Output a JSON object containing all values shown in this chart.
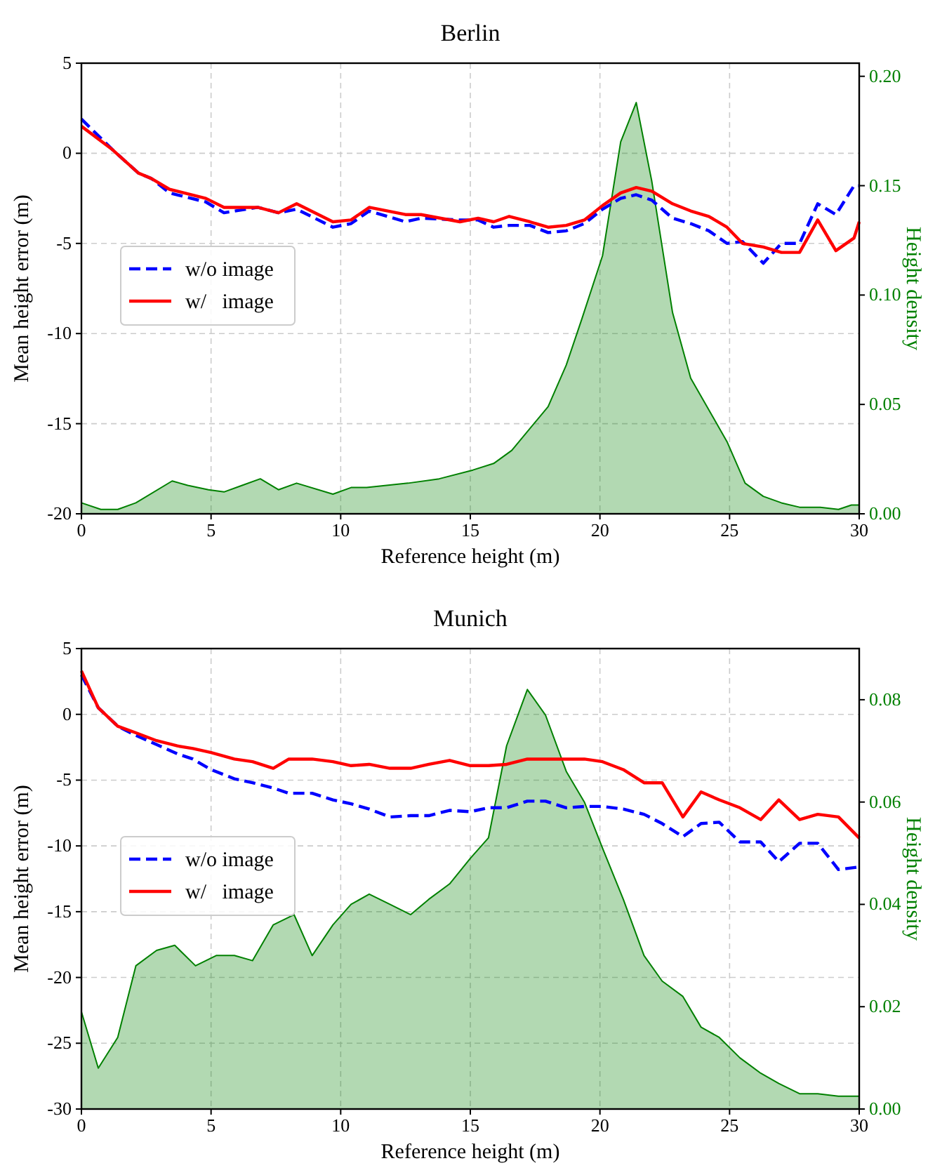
{
  "chart_data": [
    {
      "type": "line",
      "title": "Berlin",
      "xlabel": "Reference height (m)",
      "ylabel": "Mean height error (m)",
      "y2label": "Height density",
      "xlim": [
        0,
        30
      ],
      "xticks": [
        0,
        5,
        10,
        15,
        20,
        25,
        30
      ],
      "ylim": [
        -20,
        5
      ],
      "yticks": [
        -20,
        -15,
        -10,
        -5,
        0,
        5
      ],
      "y2lim": [
        0,
        0.206
      ],
      "y2ticks": [
        {
          "value": 0,
          "label": "0.00"
        },
        {
          "value": 0.05,
          "label": "0.05"
        },
        {
          "value": 0.1,
          "label": "0.10"
        },
        {
          "value": 0.15,
          "label": "0.15"
        },
        {
          "value": 0.2,
          "label": "0.20"
        }
      ],
      "grid": true,
      "legend": "left",
      "series": [
        {
          "type": "area",
          "axis": "y2",
          "color": "#008000",
          "x": [
            0,
            0.75,
            1.4,
            2.1,
            3.5,
            4.1,
            4.9,
            5.5,
            6.2,
            6.9,
            7.6,
            8.3,
            9.7,
            10.4,
            11.0,
            12.6,
            13.8,
            15.1,
            15.9,
            16.6,
            18.0,
            18.7,
            19.3,
            20.1,
            20.8,
            21.4,
            22.0,
            22.8,
            23.5,
            24.9,
            25.6,
            26.3,
            27.0,
            27.7,
            28.5,
            29.2,
            29.7,
            30
          ],
          "values": [
            0.005,
            0.002,
            0.002,
            0.005,
            0.015,
            0.013,
            0.011,
            0.01,
            0.013,
            0.016,
            0.011,
            0.014,
            0.009,
            0.012,
            0.012,
            0.014,
            0.016,
            0.02,
            0.023,
            0.029,
            0.049,
            0.068,
            0.089,
            0.118,
            0.17,
            0.188,
            0.152,
            0.092,
            0.062,
            0.033,
            0.014,
            0.008,
            0.005,
            0.003,
            0.003,
            0.002,
            0.004,
            0.004
          ]
        },
        {
          "name": "w/o image",
          "color": "#0000ff",
          "line_style": "dashed",
          "x": [
            0,
            1.2,
            2.2,
            2.7,
            3.4,
            4.8,
            5.5,
            6.8,
            7.6,
            8.3,
            9.7,
            10.4,
            11.1,
            12.5,
            13.1,
            14.6,
            15.3,
            15.9,
            16.5,
            17.3,
            18.0,
            18.7,
            19.4,
            20.1,
            20.8,
            21.4,
            22.0,
            22.8,
            23.5,
            24.2,
            24.9,
            25.5,
            26.3,
            27.0,
            27.7,
            28.4,
            29.1,
            29.8,
            30
          ],
          "values": [
            1.9,
            0.2,
            -1.1,
            -1.4,
            -2.2,
            -2.7,
            -3.3,
            -3.0,
            -3.3,
            -3.1,
            -4.1,
            -3.9,
            -3.2,
            -3.8,
            -3.6,
            -3.7,
            -3.7,
            -4.1,
            -4.0,
            -4.0,
            -4.4,
            -4.3,
            -3.9,
            -3.1,
            -2.5,
            -2.3,
            -2.6,
            -3.6,
            -3.9,
            -4.3,
            -5.0,
            -4.9,
            -6.1,
            -5.0,
            -5.0,
            -2.8,
            -3.4,
            -1.8,
            -1.8
          ]
        },
        {
          "name": "w/   image",
          "color": "#ff0000",
          "line_style": "solid",
          "x": [
            0,
            1.2,
            2.2,
            2.7,
            3.4,
            4.8,
            5.5,
            6.8,
            7.6,
            8.3,
            9.7,
            10.4,
            11.1,
            12.5,
            13.1,
            14.6,
            15.3,
            15.9,
            16.5,
            17.3,
            18.0,
            18.7,
            19.4,
            20.1,
            20.8,
            21.4,
            22.0,
            22.8,
            23.5,
            24.2,
            24.9,
            25.5,
            26.3,
            27.0,
            27.7,
            28.4,
            29.1,
            29.8,
            30
          ],
          "values": [
            1.5,
            0.2,
            -1.1,
            -1.4,
            -2.0,
            -2.5,
            -3.0,
            -3.0,
            -3.3,
            -2.8,
            -3.8,
            -3.7,
            -3.0,
            -3.4,
            -3.4,
            -3.8,
            -3.6,
            -3.8,
            -3.5,
            -3.8,
            -4.1,
            -4.0,
            -3.7,
            -2.9,
            -2.2,
            -1.9,
            -2.1,
            -2.8,
            -3.2,
            -3.5,
            -4.1,
            -5.0,
            -5.2,
            -5.5,
            -5.5,
            -3.7,
            -5.4,
            -4.7,
            -3.8
          ]
        }
      ]
    },
    {
      "type": "line",
      "title": "Munich",
      "xlabel": "Reference height (m)",
      "ylabel": "Mean height error (m)",
      "y2label": "Height density",
      "xlim": [
        0,
        30
      ],
      "xticks": [
        0,
        5,
        10,
        15,
        20,
        25,
        30
      ],
      "ylim": [
        -30,
        5
      ],
      "yticks": [
        -30,
        -25,
        -20,
        -15,
        -10,
        -5,
        0,
        5
      ],
      "y2lim": [
        0,
        0.09
      ],
      "y2ticks": [
        {
          "value": 0,
          "label": "0.00"
        },
        {
          "value": 0.02,
          "label": "0.02"
        },
        {
          "value": 0.04,
          "label": "0.04"
        },
        {
          "value": 0.06,
          "label": "0.06"
        },
        {
          "value": 0.08,
          "label": "0.08"
        }
      ],
      "grid": true,
      "legend": "left",
      "series": [
        {
          "type": "area",
          "axis": "y2",
          "color": "#008000",
          "x": [
            0,
            0.65,
            1.4,
            2.1,
            2.9,
            3.6,
            4.4,
            5.2,
            5.9,
            6.6,
            7.4,
            8.2,
            8.9,
            9.7,
            10.4,
            11.1,
            11.9,
            12.7,
            13.4,
            14.2,
            15.0,
            15.7,
            16.4,
            17.2,
            17.9,
            18.7,
            19.4,
            20.1,
            20.9,
            21.7,
            22.4,
            23.2,
            23.9,
            24.6,
            25.4,
            26.2,
            26.9,
            27.7,
            28.4,
            29.2,
            30
          ],
          "values": [
            0.019,
            0.008,
            0.014,
            0.028,
            0.031,
            0.032,
            0.028,
            0.03,
            0.03,
            0.029,
            0.036,
            0.038,
            0.03,
            0.036,
            0.04,
            0.042,
            0.04,
            0.038,
            0.041,
            0.044,
            0.049,
            0.053,
            0.071,
            0.082,
            0.077,
            0.066,
            0.06,
            0.051,
            0.041,
            0.03,
            0.025,
            0.022,
            0.016,
            0.014,
            0.01,
            0.007,
            0.005,
            0.003,
            0.003,
            0.0025,
            0.0025
          ]
        },
        {
          "name": "w/o image",
          "color": "#0000ff",
          "line_style": "dashed",
          "x": [
            0,
            0.65,
            1.4,
            2.1,
            2.9,
            3.7,
            4.3,
            5.0,
            5.9,
            6.6,
            7.4,
            8.0,
            8.9,
            9.7,
            10.4,
            11.1,
            11.9,
            12.7,
            13.4,
            14.2,
            15.0,
            15.7,
            16.4,
            17.2,
            17.9,
            18.7,
            19.4,
            20.1,
            20.9,
            21.7,
            22.4,
            23.2,
            23.9,
            24.6,
            25.4,
            26.2,
            26.9,
            27.7,
            28.4,
            29.2,
            30
          ],
          "values": [
            3.0,
            0.5,
            -0.9,
            -1.6,
            -2.3,
            -3.0,
            -3.4,
            -4.2,
            -4.9,
            -5.2,
            -5.6,
            -6.0,
            -6.0,
            -6.5,
            -6.8,
            -7.2,
            -7.8,
            -7.7,
            -7.7,
            -7.3,
            -7.4,
            -7.1,
            -7.1,
            -6.6,
            -6.6,
            -7.1,
            -7.0,
            -7.0,
            -7.2,
            -7.6,
            -8.3,
            -9.3,
            -8.3,
            -8.2,
            -9.7,
            -9.7,
            -11.2,
            -9.8,
            -9.8,
            -11.8,
            -11.6
          ]
        },
        {
          "name": "w/   image",
          "color": "#ff0000",
          "line_style": "solid",
          "x": [
            0,
            0.65,
            1.4,
            2.1,
            2.9,
            3.7,
            4.3,
            5.0,
            5.9,
            6.6,
            7.4,
            8.0,
            8.9,
            9.7,
            10.4,
            11.1,
            11.9,
            12.7,
            13.4,
            14.2,
            15.0,
            15.7,
            16.4,
            17.2,
            17.9,
            18.7,
            19.4,
            20.1,
            20.9,
            21.7,
            22.4,
            23.2,
            23.9,
            24.6,
            25.4,
            26.2,
            26.9,
            27.7,
            28.4,
            29.2,
            30
          ],
          "values": [
            3.3,
            0.5,
            -0.9,
            -1.4,
            -2.0,
            -2.4,
            -2.6,
            -2.9,
            -3.4,
            -3.6,
            -4.1,
            -3.4,
            -3.4,
            -3.6,
            -3.9,
            -3.8,
            -4.1,
            -4.1,
            -3.8,
            -3.5,
            -3.9,
            -3.9,
            -3.8,
            -3.4,
            -3.4,
            -3.4,
            -3.4,
            -3.6,
            -4.2,
            -5.2,
            -5.2,
            -7.8,
            -5.9,
            -6.5,
            -7.1,
            -8.0,
            -6.5,
            -8.0,
            -7.6,
            -7.8,
            -9.4
          ]
        }
      ]
    }
  ]
}
